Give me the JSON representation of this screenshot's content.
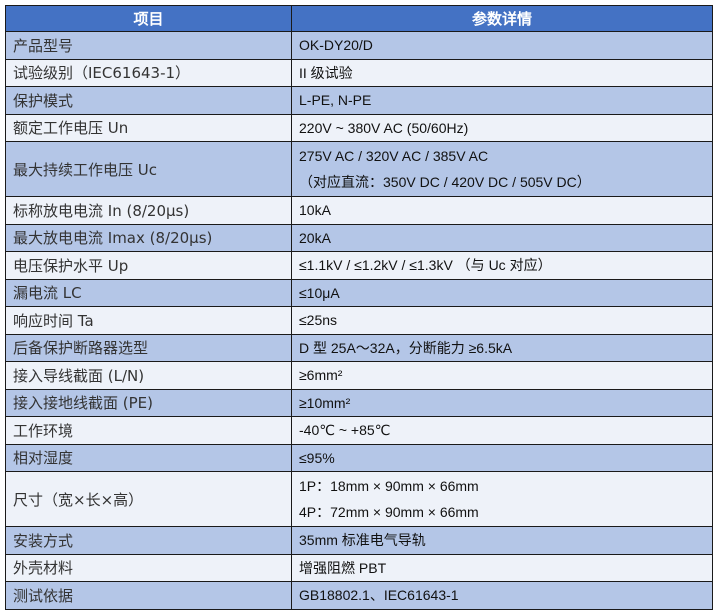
{
  "header": {
    "item": "项目",
    "details": "参数详情"
  },
  "colors": {
    "header": "#4472C4",
    "row_dark": "#B4C6E7",
    "row_light": "#EEF2F9"
  },
  "rows": [
    {
      "key": "产品型号",
      "value": [
        "OK-DY20/D"
      ]
    },
    {
      "key": "试验级别（IEC61643-1）",
      "value": [
        "II 级试验"
      ]
    },
    {
      "key": "保护模式",
      "value": [
        "L-PE, N-PE"
      ]
    },
    {
      "key": "额定工作电压  Un",
      "value": [
        "220V ~ 380V AC (50/60Hz)"
      ]
    },
    {
      "key": "最大持续工作电压  Uc",
      "value": [
        "275V AC / 320V AC / 385V AC",
        "（对应直流：350V DC / 420V DC / 505V DC）"
      ]
    },
    {
      "key": "标称放电电流  In (8/20μs)",
      "value": [
        "10kA"
      ]
    },
    {
      "key": "最大放电电流  Imax (8/20μs)",
      "value": [
        "20kA"
      ]
    },
    {
      "key": "电压保护水平  Up",
      "value": [
        "≤1.1kV / ≤1.2kV / ≤1.3kV  （与 Uc 对应）"
      ]
    },
    {
      "key": "漏电流  LC",
      "value": [
        "≤10μA"
      ]
    },
    {
      "key": "响应时间  Ta",
      "value": [
        "≤25ns"
      ]
    },
    {
      "key": "后备保护断路器选型",
      "value": [
        "D 型  25A～32A，分断能力  ≥6.5kA"
      ]
    },
    {
      "key": "接入导线截面  (L/N)",
      "value": [
        "≥6mm²"
      ]
    },
    {
      "key": "接入接地线截面  (PE)",
      "value": [
        "≥10mm²"
      ]
    },
    {
      "key": "工作环境",
      "value": [
        "-40℃ ~ +85℃"
      ]
    },
    {
      "key": "相对湿度",
      "value": [
        "≤95%"
      ]
    },
    {
      "key": "尺寸（宽×长×高）",
      "value": [
        "1P：18mm × 90mm × 66mm",
        "4P：72mm × 90mm × 66mm"
      ]
    },
    {
      "key": "安装方式",
      "value": [
        "35mm 标准电气导轨"
      ]
    },
    {
      "key": "外壳材料",
      "value": [
        "增强阻燃 PBT"
      ]
    },
    {
      "key": "测试依据",
      "value": [
        "GB18802.1、IEC61643-1"
      ]
    }
  ]
}
